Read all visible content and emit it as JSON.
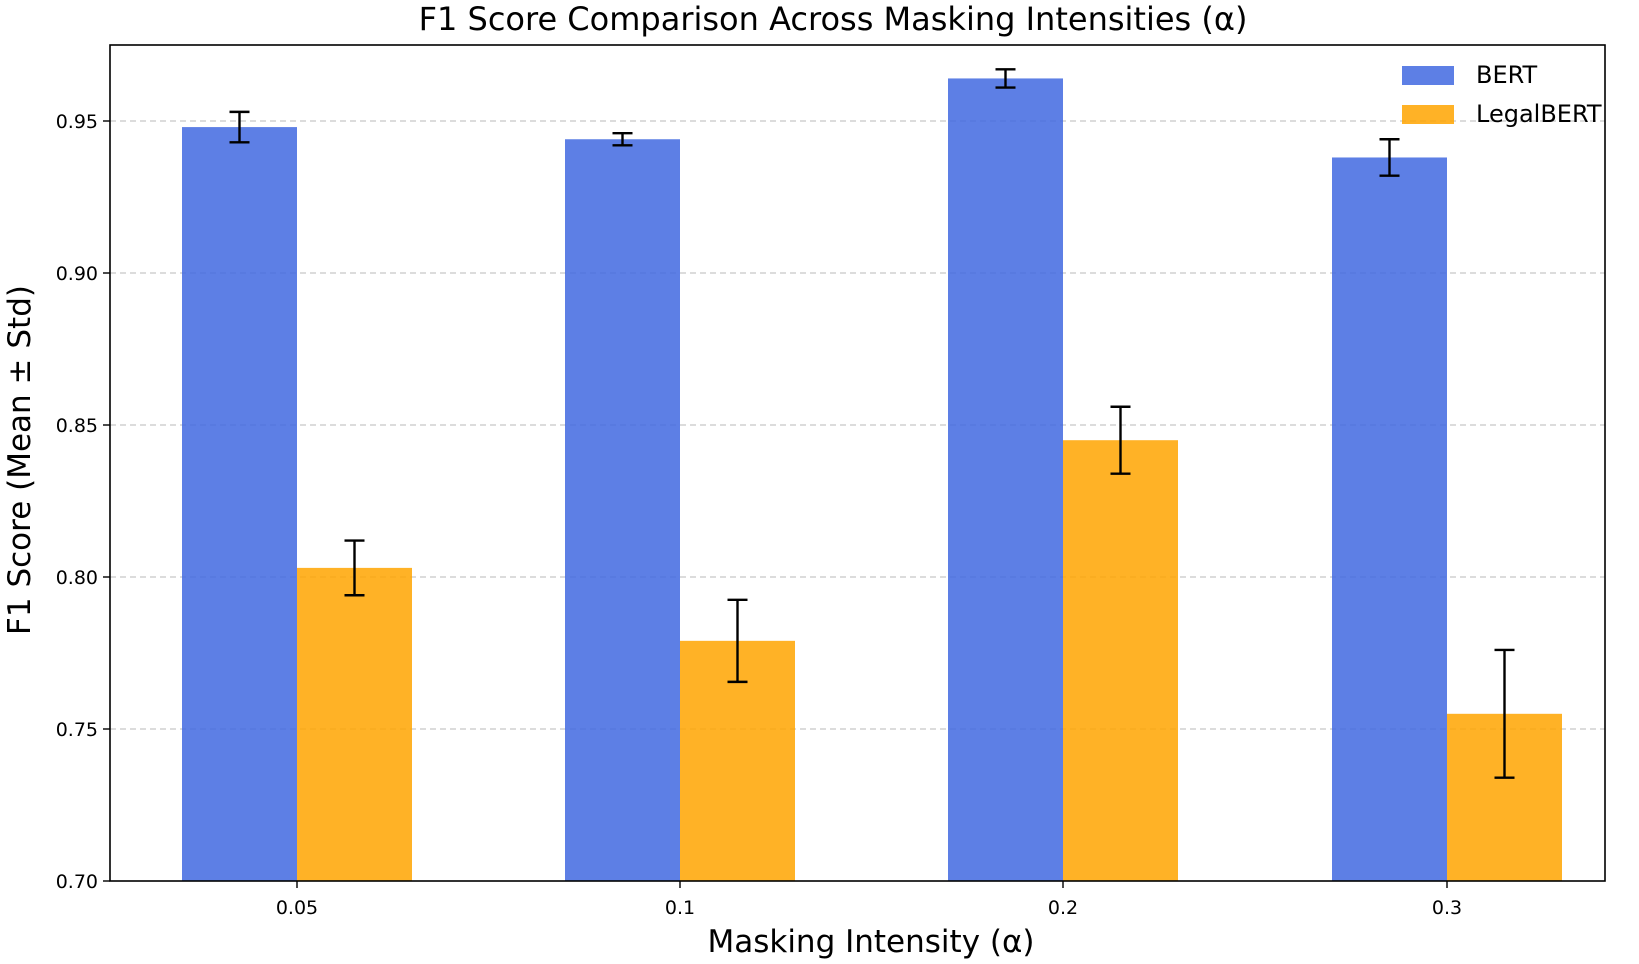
{
  "chart_data": {
    "type": "bar",
    "title": "F1 Score Comparison Across Masking Intensities (α)",
    "xlabel": "Masking Intensity (α)",
    "ylabel": "F1 Score (Mean ± Std)",
    "categories": [
      "0.05",
      "0.1",
      "0.2",
      "0.3"
    ],
    "ylim": [
      0.7,
      0.975
    ],
    "yticks": [
      0.7,
      0.75,
      0.8,
      0.85,
      0.9,
      0.95
    ],
    "ytick_labels": [
      "0.70",
      "0.75",
      "0.80",
      "0.85",
      "0.90",
      "0.95"
    ],
    "grid": "y-dashed",
    "legend_position": "top-right",
    "series": [
      {
        "name": "BERT",
        "color": "#4169e1",
        "values": [
          0.948,
          0.944,
          0.964,
          0.938
        ],
        "errors": [
          0.005,
          0.002,
          0.003,
          0.006
        ]
      },
      {
        "name": "LegalBERT",
        "color": "#ffa500",
        "values": [
          0.803,
          0.779,
          0.845,
          0.755
        ],
        "errors": [
          0.009,
          0.0135,
          0.011,
          0.021
        ]
      }
    ]
  }
}
